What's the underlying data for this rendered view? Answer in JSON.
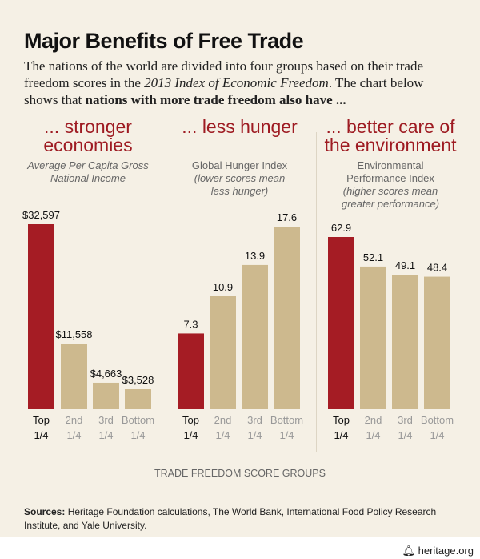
{
  "title": "Major Benefits of Free Trade",
  "intro": {
    "part1": "The nations of the world are divided into four groups based on their trade freedom scores in the ",
    "italic": "2013 Index of Economic Freedom",
    "part2": ". The chart below shows that ",
    "bold": "nations with more trade freedom also have ..."
  },
  "colors": {
    "highlight": "#a51c24",
    "bar": "#cdb98e",
    "heading": "#9e1b22"
  },
  "chart_data": [
    {
      "type": "bar",
      "title": "... stronger economies",
      "subtitle": "Average Per Capita Gross National Income",
      "categories": [
        [
          "Top",
          "1/4"
        ],
        [
          "2nd",
          "1/4"
        ],
        [
          "3rd",
          "1/4"
        ],
        [
          "Bottom",
          "1/4"
        ]
      ],
      "values": [
        32597,
        11558,
        4663,
        3528
      ],
      "labels": [
        "$32,597",
        "$11,558",
        "$4,663",
        "$3,528"
      ]
    },
    {
      "type": "bar",
      "title": "... less hunger",
      "subtitle": "Global Hunger Index",
      "note": "(lower scores mean less hunger)",
      "categories": [
        [
          "Top",
          "1/4"
        ],
        [
          "2nd",
          "1/4"
        ],
        [
          "3rd",
          "1/4"
        ],
        [
          "Bottom",
          "1/4"
        ]
      ],
      "values": [
        7.3,
        10.9,
        13.9,
        17.6
      ],
      "labels": [
        "7.3",
        "10.9",
        "13.9",
        "17.6"
      ]
    },
    {
      "type": "bar",
      "title": "... better care of the environment",
      "subtitle": "Environmental Performance Index",
      "note": "(higher scores mean greater performance)",
      "categories": [
        [
          "Top",
          "1/4"
        ],
        [
          "2nd",
          "1/4"
        ],
        [
          "3rd",
          "1/4"
        ],
        [
          "Bottom",
          "1/4"
        ]
      ],
      "values": [
        62.9,
        52.1,
        49.1,
        48.4
      ],
      "labels": [
        "62.9",
        "52.1",
        "49.1",
        "48.4"
      ]
    }
  ],
  "xlabel": "TRADE FREEDOM SCORE GROUPS",
  "sources": {
    "label": "Sources:",
    "text": " Heritage Foundation calculations, The World Bank, International Food Policy Research Institute, and Yale University."
  },
  "brand": {
    "icon": "liberty-bell-icon",
    "text": "heritage.org"
  }
}
